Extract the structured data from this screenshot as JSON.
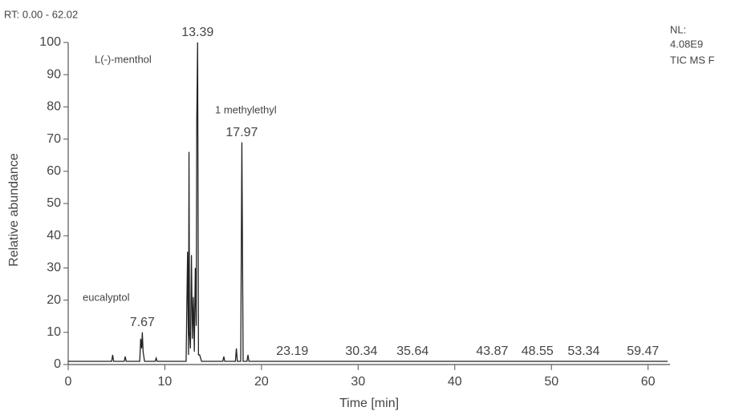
{
  "chart_data": {
    "type": "line",
    "header": "RT: 0.00 - 62.02",
    "nl_lines": [
      "NL:",
      "4.08E9",
      "TIC  MS F"
    ],
    "xlabel": "Time [min]",
    "ylabel": "Relative abundance",
    "annotations": [
      "L(-)-menthol",
      "1 methylethyl",
      "eucalyptol"
    ],
    "x": [
      0,
      4.5,
      4.6,
      4.7,
      5.8,
      5.9,
      6,
      7.4,
      7.5,
      7.6,
      7.67,
      7.75,
      7.9,
      9,
      9.1,
      9.2,
      12.2,
      12.35,
      12.45,
      12.5,
      12.55,
      12.65,
      12.75,
      12.85,
      12.95,
      13.05,
      13.15,
      13.25,
      13.3,
      13.39,
      13.48,
      13.6,
      13.7,
      13.8,
      16,
      16.1,
      16.2,
      17.3,
      17.4,
      17.5,
      17.85,
      17.97,
      18.1,
      18.5,
      18.6,
      18.7,
      22,
      23.19,
      25,
      30.34,
      35.64,
      43.87,
      48.55,
      53.34,
      59.47,
      62.02
    ],
    "values": [
      1,
      1,
      3,
      1,
      1,
      2.5,
      1,
      1,
      8,
      5,
      10,
      4,
      1,
      1,
      2,
      1,
      1,
      35,
      3,
      66,
      10,
      5,
      34,
      8,
      21,
      4,
      30,
      12,
      75,
      100,
      3,
      3,
      2,
      1,
      1,
      2.5,
      1,
      1,
      5,
      1,
      1,
      69,
      1,
      1,
      3,
      1,
      1,
      1,
      1,
      1,
      1,
      1,
      1,
      1,
      1,
      1
    ],
    "color": "#222222",
    "peak_labels": [
      7.67,
      13.39,
      17.97,
      23.19,
      30.34,
      35.64,
      43.87,
      48.55,
      53.34,
      59.47
    ],
    "xlim": [
      0,
      62.02
    ],
    "ylim": [
      0,
      100
    ],
    "xticks": [
      0,
      10,
      20,
      30,
      40,
      50,
      60
    ],
    "yticks": [
      0,
      10,
      20,
      30,
      40,
      50,
      60,
      70,
      80,
      90,
      100
    ]
  }
}
